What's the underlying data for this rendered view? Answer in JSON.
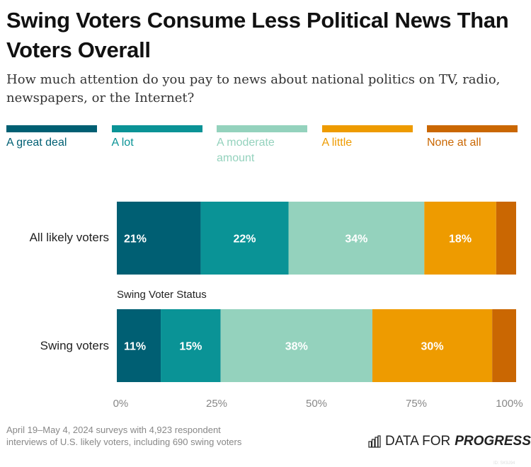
{
  "title": "Swing Voters Consume Less Political News Than Voters Overall",
  "subtitle": "How much attention do you pay to news about national politics on TV, radio, newspapers, or the Internet?",
  "chart_data": {
    "type": "bar",
    "orientation": "horizontal",
    "stacked": true,
    "categories": [
      "All likely voters",
      "Swing voters"
    ],
    "group_label": "Swing Voter Status",
    "series": [
      {
        "name": "A great deal",
        "color": "#005f73",
        "values": [
          21,
          11
        ],
        "labels": [
          "21%",
          "11%"
        ]
      },
      {
        "name": "A lot",
        "color": "#0a9396",
        "values": [
          22,
          15
        ],
        "labels": [
          "22%",
          "15%"
        ]
      },
      {
        "name": "A moderate amount",
        "color": "#94d2bd",
        "values": [
          34,
          38
        ],
        "labels": [
          "34%",
          "38%"
        ]
      },
      {
        "name": "A little",
        "color": "#ee9b00",
        "values": [
          18,
          30
        ],
        "labels": [
          "18%",
          "30%"
        ]
      },
      {
        "name": "None at all",
        "color": "#ca6702",
        "values": [
          5,
          6
        ],
        "labels": [
          "",
          ""
        ]
      }
    ],
    "xlim": [
      0,
      100
    ],
    "xticks": [
      "0%",
      "25%",
      "50%",
      "75%",
      "100%"
    ],
    "legend": "top",
    "grid": false
  },
  "footnote": "April 19–May 4, 2024 surveys with 4,923 respondent interviews of U.S. likely voters, including 690 swing voters",
  "logo": {
    "text1": "DATA FOR",
    "text2": "PROGRESS"
  },
  "image_id": "ID: SK9J94"
}
